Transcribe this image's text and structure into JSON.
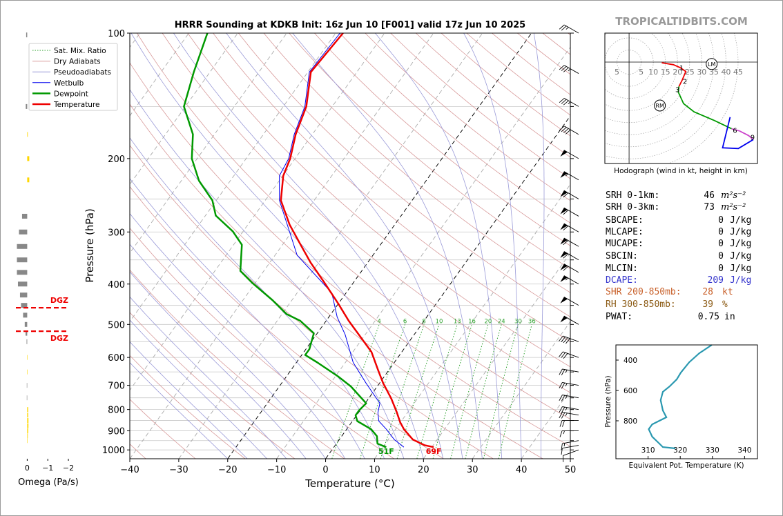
{
  "site": "TROPICALTIDBITS.COM",
  "stats": [
    {
      "label": "SRH 0-1km:",
      "value": 46,
      "unit": "m²s⁻²"
    },
    {
      "label": "SRH 0-3km:",
      "value": 73,
      "unit": "m²s⁻²"
    },
    {
      "label": "SBCAPE:",
      "value": 0,
      "unit": "J/kg"
    },
    {
      "label": "MLCAPE:",
      "value": 0,
      "unit": "J/kg"
    },
    {
      "label": "MUCAPE:",
      "value": 0,
      "unit": "J/kg"
    },
    {
      "label": "SBCIN:",
      "value": 0,
      "unit": "J/kg"
    },
    {
      "label": "MLCIN:",
      "value": 0,
      "unit": "J/kg"
    },
    {
      "label": "DCAPE:",
      "value": 209,
      "unit": "J/kg",
      "color": "#3333cc"
    },
    {
      "label": "SHR 200-850mb:",
      "value": 28,
      "unit": "kt",
      "color": "#c8602a"
    },
    {
      "label": "RH 300-850mb:",
      "value": 39,
      "unit": "%",
      "color": "#8b5a14"
    },
    {
      "label": "PWAT:",
      "value": 0.75,
      "unit": "in"
    }
  ],
  "chart_data": [
    {
      "type": "skewt",
      "title": "HRRR Sounding at KDKB Init: 16z Jun 10 [F001] valid 17z Jun 10 2025",
      "xlabel": "Temperature (°C)",
      "ylabel": "Pressure (hPa)",
      "xlim": [
        -40,
        50
      ],
      "ylim": [
        1050,
        100
      ],
      "log_y": true,
      "xticks": [
        {
          "value": -40,
          "label": "−40"
        },
        {
          "value": -30,
          "label": "−30"
        },
        {
          "value": -20,
          "label": "−20"
        },
        {
          "value": -10,
          "label": "−10"
        },
        0,
        10,
        20,
        30,
        40,
        50
      ],
      "yticks": [
        100,
        200,
        300,
        400,
        500,
        600,
        700,
        800,
        900,
        1000
      ],
      "yticks_minor": [
        150,
        250,
        350,
        450,
        550,
        650,
        750,
        850,
        950,
        1050
      ],
      "dashed_isotherms": [
        -20,
        0
      ],
      "reference_lines": [
        {
          "name": "Sat. Mix. Ratio",
          "color": "#2ca02c",
          "style": "dotted"
        },
        {
          "name": "Dry Adiabats",
          "color": "#d89a9a",
          "style": "solid"
        },
        {
          "name": "Pseudoadiabats",
          "color": "#9a9ad8",
          "style": "solid"
        }
      ],
      "mixing_ratios": [
        4,
        6,
        8,
        10,
        13,
        16,
        20,
        24,
        30,
        36
      ],
      "series": [
        {
          "name": "Wetbulb",
          "color": "#0000ee",
          "width": 1,
          "pressure": [
            985,
            944,
            892,
            853,
            815,
            773,
            691,
            617,
            529,
            480,
            420,
            341,
            252,
            220,
            200,
            175,
            150,
            124,
            100
          ],
          "values": [
            14.3,
            11.2,
            8.1,
            5.4,
            4.0,
            3.0,
            -2.8,
            -8.4,
            -14.1,
            -18.3,
            -22.9,
            -35.5,
            -47.1,
            -50.7,
            -51.3,
            -53.7,
            -55.6,
            -59.7,
            -59.1
          ]
        },
        {
          "name": "Dewpoint",
          "color": "#009900",
          "width": 2.5,
          "pressure": [
            985,
            966,
            927,
            892,
            853,
            826,
            803,
            773,
            704,
            666,
            617,
            592,
            573,
            525,
            490,
            472,
            437,
            397,
            372,
            322,
            299,
            274,
            252,
            226,
            200,
            175,
            150,
            124,
            100
          ],
          "values": [
            10.7,
            8.4,
            7.2,
            5.0,
            1.0,
            -0.2,
            -0.2,
            0.2,
            -5.4,
            -9.5,
            -15.7,
            -19.3,
            -19.3,
            -20.7,
            -25.3,
            -29.1,
            -34.0,
            -40.7,
            -44.8,
            -48.3,
            -52.1,
            -57.9,
            -60.8,
            -66.4,
            -71.1,
            -74.4,
            -80.3,
            -83.3,
            -86.2
          ]
        },
        {
          "name": "Temperature",
          "color": "#ee0000",
          "width": 2.5,
          "pressure": [
            985,
            974,
            944,
            892,
            858,
            811,
            754,
            691,
            645,
            582,
            529,
            490,
            446,
            397,
            355,
            322,
            288,
            252,
            220,
            200,
            175,
            150,
            124,
            100
          ],
          "values": [
            20.4,
            18.2,
            15.0,
            11.7,
            9.9,
            7.7,
            4.7,
            0.7,
            -2.1,
            -6.2,
            -11.3,
            -15.4,
            -20.0,
            -25.9,
            -31.7,
            -36.3,
            -41.5,
            -46.8,
            -49.9,
            -51.0,
            -53.4,
            -55.3,
            -59.4,
            -58.5
          ]
        }
      ],
      "surface_labels": [
        {
          "text": "51F",
          "color": "#009900"
        },
        {
          "text": "69F",
          "color": "#ee0000"
        }
      ],
      "wind_barbs": {
        "pressure": [
          100,
          125,
          150,
          175,
          200,
          225,
          250,
          275,
          300,
          325,
          350,
          375,
          400,
          450,
          500,
          550,
          600,
          650,
          700,
          750,
          800,
          825,
          850,
          900,
          950,
          975,
          1000
        ],
        "speed": [
          25,
          35,
          35,
          40,
          50,
          55,
          60,
          60,
          60,
          60,
          60,
          60,
          55,
          50,
          50,
          40,
          30,
          25,
          25,
          25,
          25,
          25,
          20,
          15,
          15,
          10,
          10
        ],
        "direction": [
          300,
          300,
          300,
          300,
          300,
          300,
          300,
          300,
          300,
          300,
          300,
          300,
          300,
          300,
          300,
          290,
          290,
          280,
          280,
          280,
          280,
          280,
          270,
          270,
          260,
          260,
          250
        ]
      }
    },
    {
      "type": "omega",
      "xlabel": "Omega (Pa/s)",
      "xlim": [
        0.55,
        -2.2
      ],
      "ylim": [
        1050,
        100
      ],
      "xticks": [
        0,
        {
          "value": -1,
          "label": "−1"
        },
        {
          "value": -2,
          "label": "−2"
        }
      ],
      "color_positive": "#888888",
      "color_negative": "#ffd700",
      "pressure": [
        101,
        150,
        175,
        200,
        225,
        275,
        300,
        325,
        350,
        375,
        400,
        425,
        450,
        475,
        500,
        525,
        550,
        600,
        650,
        700,
        750,
        800,
        825,
        850,
        875,
        900,
        925,
        950
      ],
      "values": [
        0.05,
        0.07,
        -0.03,
        -0.1,
        -0.1,
        0.25,
        0.4,
        0.5,
        0.5,
        0.5,
        0.45,
        0.35,
        0.3,
        0.2,
        0.12,
        0.08,
        0.03,
        -0.02,
        -0.02,
        0.02,
        0.02,
        -0.05,
        -0.05,
        -0.06,
        -0.06,
        -0.05,
        -0.03,
        -0.02
      ],
      "dgz": {
        "label": "DGZ",
        "top": 456,
        "bottom": 519,
        "color": "#ee0000"
      }
    },
    {
      "type": "hodograph",
      "caption": "Hodograph (wind in kt, height in km)",
      "xlim": [
        -10,
        53
      ],
      "ylim": [
        -42,
        12
      ],
      "rings": [
        5,
        10,
        15,
        20,
        25,
        30,
        35,
        40,
        45
      ],
      "segments": [
        {
          "color": "#ee0000",
          "u": [
            13.5,
            18.3,
            21.1,
            23.4,
            22.0,
            20.6
          ],
          "v": [
            -0.3,
            -1.1,
            -2.3,
            -3.9,
            -7.3,
            -10.1
          ]
        },
        {
          "color": "#009900",
          "u": [
            20.6,
            20.3,
            22.5,
            26.8,
            35.2,
            42.3
          ],
          "v": [
            -10.1,
            -12.4,
            -17.2,
            -20.6,
            -24.2,
            -27.6
          ]
        },
        {
          "color": "#cc44cc",
          "u": [
            42.3,
            45.6,
            49.3,
            51.3
          ],
          "v": [
            -27.6,
            -28.5,
            -30.4,
            -32.1
          ]
        },
        {
          "color": "#0000ee",
          "u": [
            51.3,
            45.1,
            38.6,
            41.7
          ],
          "v": [
            -32.1,
            -35.8,
            -35.5,
            -22.8
          ]
        }
      ],
      "heights": [
        {
          "value": 1,
          "u": 21.7,
          "v": -2.3
        },
        {
          "value": 2,
          "u": 23.1,
          "v": -7.9
        },
        {
          "value": 3,
          "u": 20.0,
          "v": -11.3
        },
        {
          "value": 6,
          "u": 43.7,
          "v": -28.2
        },
        {
          "value": 9,
          "u": 51.0,
          "v": -31.0
        }
      ],
      "markers": [
        {
          "label": "LM",
          "u": 34.1,
          "v": -0.8
        },
        {
          "label": "RM",
          "u": 12.7,
          "v": -18.0
        }
      ]
    },
    {
      "type": "line",
      "xlabel": "Equivalent Pot. Temperature (K)",
      "ylabel": "Pressure (hPa)",
      "xlim": [
        300,
        344
      ],
      "ylim": [
        1050,
        300
      ],
      "xticks": [
        310,
        320,
        330,
        340
      ],
      "yticks": [
        400,
        600,
        800
      ],
      "color": "#2a98b0",
      "pressure": [
        300,
        355,
        414,
        482,
        527,
        573,
        609,
        664,
        732,
        777,
        823,
        855,
        905,
        950,
        973,
        982
      ],
      "values": [
        329.8,
        325.9,
        322.8,
        320.2,
        318.9,
        316.7,
        314.6,
        313.9,
        314.6,
        315.7,
        311.3,
        310.2,
        311.3,
        313.5,
        314.6,
        318.5
      ]
    }
  ]
}
